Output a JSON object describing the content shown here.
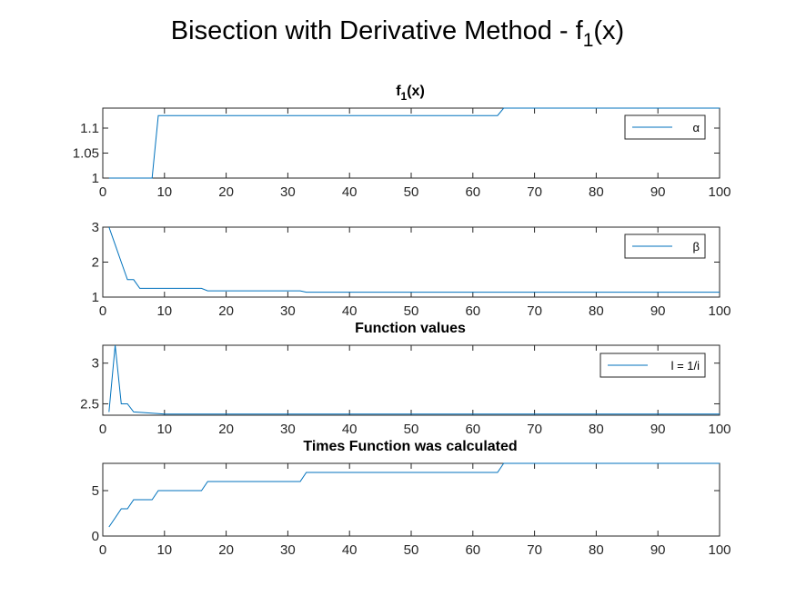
{
  "figure": {
    "title": "Bisection with Derivative Method - f",
    "title_subscript": "1",
    "title_suffix": "(x)"
  },
  "colors": {
    "series": "#0072BD",
    "axis": "#262626"
  },
  "chart_data": [
    {
      "type": "line",
      "title": "f",
      "title_subscript": "1",
      "title_suffix": "(x)",
      "xlabel": "",
      "ylabel": "",
      "xlim": [
        0,
        100
      ],
      "ylim": [
        1,
        1.14
      ],
      "xticks": [
        0,
        10,
        20,
        30,
        40,
        50,
        60,
        70,
        80,
        90,
        100
      ],
      "yticks": [
        1,
        1.05,
        1.1
      ],
      "ytick_labels": [
        "1",
        "1.05",
        "1.1"
      ],
      "legend": "top-right",
      "series": [
        {
          "name": "α",
          "points": [
            [
              1,
              1.0
            ],
            [
              8,
              1.0
            ],
            [
              9,
              1.125
            ],
            [
              64,
              1.125
            ],
            [
              65,
              1.14
            ],
            [
              100,
              1.14
            ]
          ]
        }
      ]
    },
    {
      "type": "line",
      "title": "",
      "xlabel": "",
      "ylabel": "",
      "xlim": [
        0,
        100
      ],
      "ylim": [
        1,
        3
      ],
      "xticks": [
        0,
        10,
        20,
        30,
        40,
        50,
        60,
        70,
        80,
        90,
        100
      ],
      "yticks": [
        1,
        2,
        3
      ],
      "ytick_labels": [
        "1",
        "2",
        "3"
      ],
      "legend": "top-right",
      "series": [
        {
          "name": "β",
          "points": [
            [
              1,
              3.0
            ],
            [
              2,
              2.5
            ],
            [
              3,
              2.0
            ],
            [
              4,
              1.5
            ],
            [
              5,
              1.5
            ],
            [
              6,
              1.25
            ],
            [
              16,
              1.25
            ],
            [
              17,
              1.18
            ],
            [
              32,
              1.18
            ],
            [
              33,
              1.14
            ],
            [
              100,
              1.14
            ]
          ]
        }
      ]
    },
    {
      "type": "line",
      "title": "Function values",
      "xlabel": "",
      "ylabel": "",
      "xlim": [
        0,
        100
      ],
      "ylim": [
        2.36,
        3.22
      ],
      "xticks": [
        0,
        10,
        20,
        30,
        40,
        50,
        60,
        70,
        80,
        90,
        100
      ],
      "yticks": [
        2.5,
        3
      ],
      "ytick_labels": [
        "2.5",
        "3"
      ],
      "legend": "top-right",
      "series": [
        {
          "name": "l = 1/i",
          "points": [
            [
              1,
              2.4
            ],
            [
              2,
              3.22
            ],
            [
              3,
              2.5
            ],
            [
              4,
              2.5
            ],
            [
              5,
              2.4
            ],
            [
              9,
              2.38
            ],
            [
              10,
              2.375
            ],
            [
              100,
              2.375
            ]
          ]
        }
      ]
    },
    {
      "type": "line",
      "title": "Times Function was calculated",
      "xlabel": "",
      "ylabel": "",
      "xlim": [
        0,
        100
      ],
      "ylim": [
        0,
        8
      ],
      "xticks": [
        0,
        10,
        20,
        30,
        40,
        50,
        60,
        70,
        80,
        90,
        100
      ],
      "yticks": [
        0,
        5
      ],
      "ytick_labels": [
        "0",
        "5"
      ],
      "legend": "none",
      "series": [
        {
          "points": [
            [
              1,
              1
            ],
            [
              2,
              2
            ],
            [
              3,
              3
            ],
            [
              4,
              3
            ],
            [
              5,
              4
            ],
            [
              6,
              4
            ],
            [
              8,
              4
            ],
            [
              9,
              5
            ],
            [
              16,
              5
            ],
            [
              17,
              6
            ],
            [
              32,
              6
            ],
            [
              33,
              7
            ],
            [
              64,
              7
            ],
            [
              65,
              8
            ],
            [
              100,
              8
            ]
          ]
        }
      ]
    }
  ]
}
